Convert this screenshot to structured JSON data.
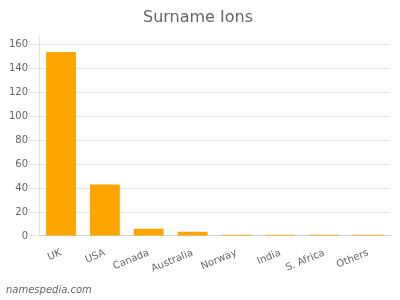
{
  "chart_data": {
    "type": "bar",
    "title": "Surname Ions",
    "categories": [
      "UK",
      "USA",
      "Canada",
      "Australia",
      "Norway",
      "India",
      "S. Africa",
      "Others"
    ],
    "values": [
      154,
      43,
      6,
      3.5,
      1,
      1,
      1,
      1
    ],
    "color": "#FFA500",
    "ylim": [
      0,
      168
    ],
    "yticks": [
      0,
      20,
      40,
      60,
      80,
      100,
      120,
      140,
      160
    ],
    "grid": true,
    "annotations": [
      "namespedia.com"
    ]
  }
}
